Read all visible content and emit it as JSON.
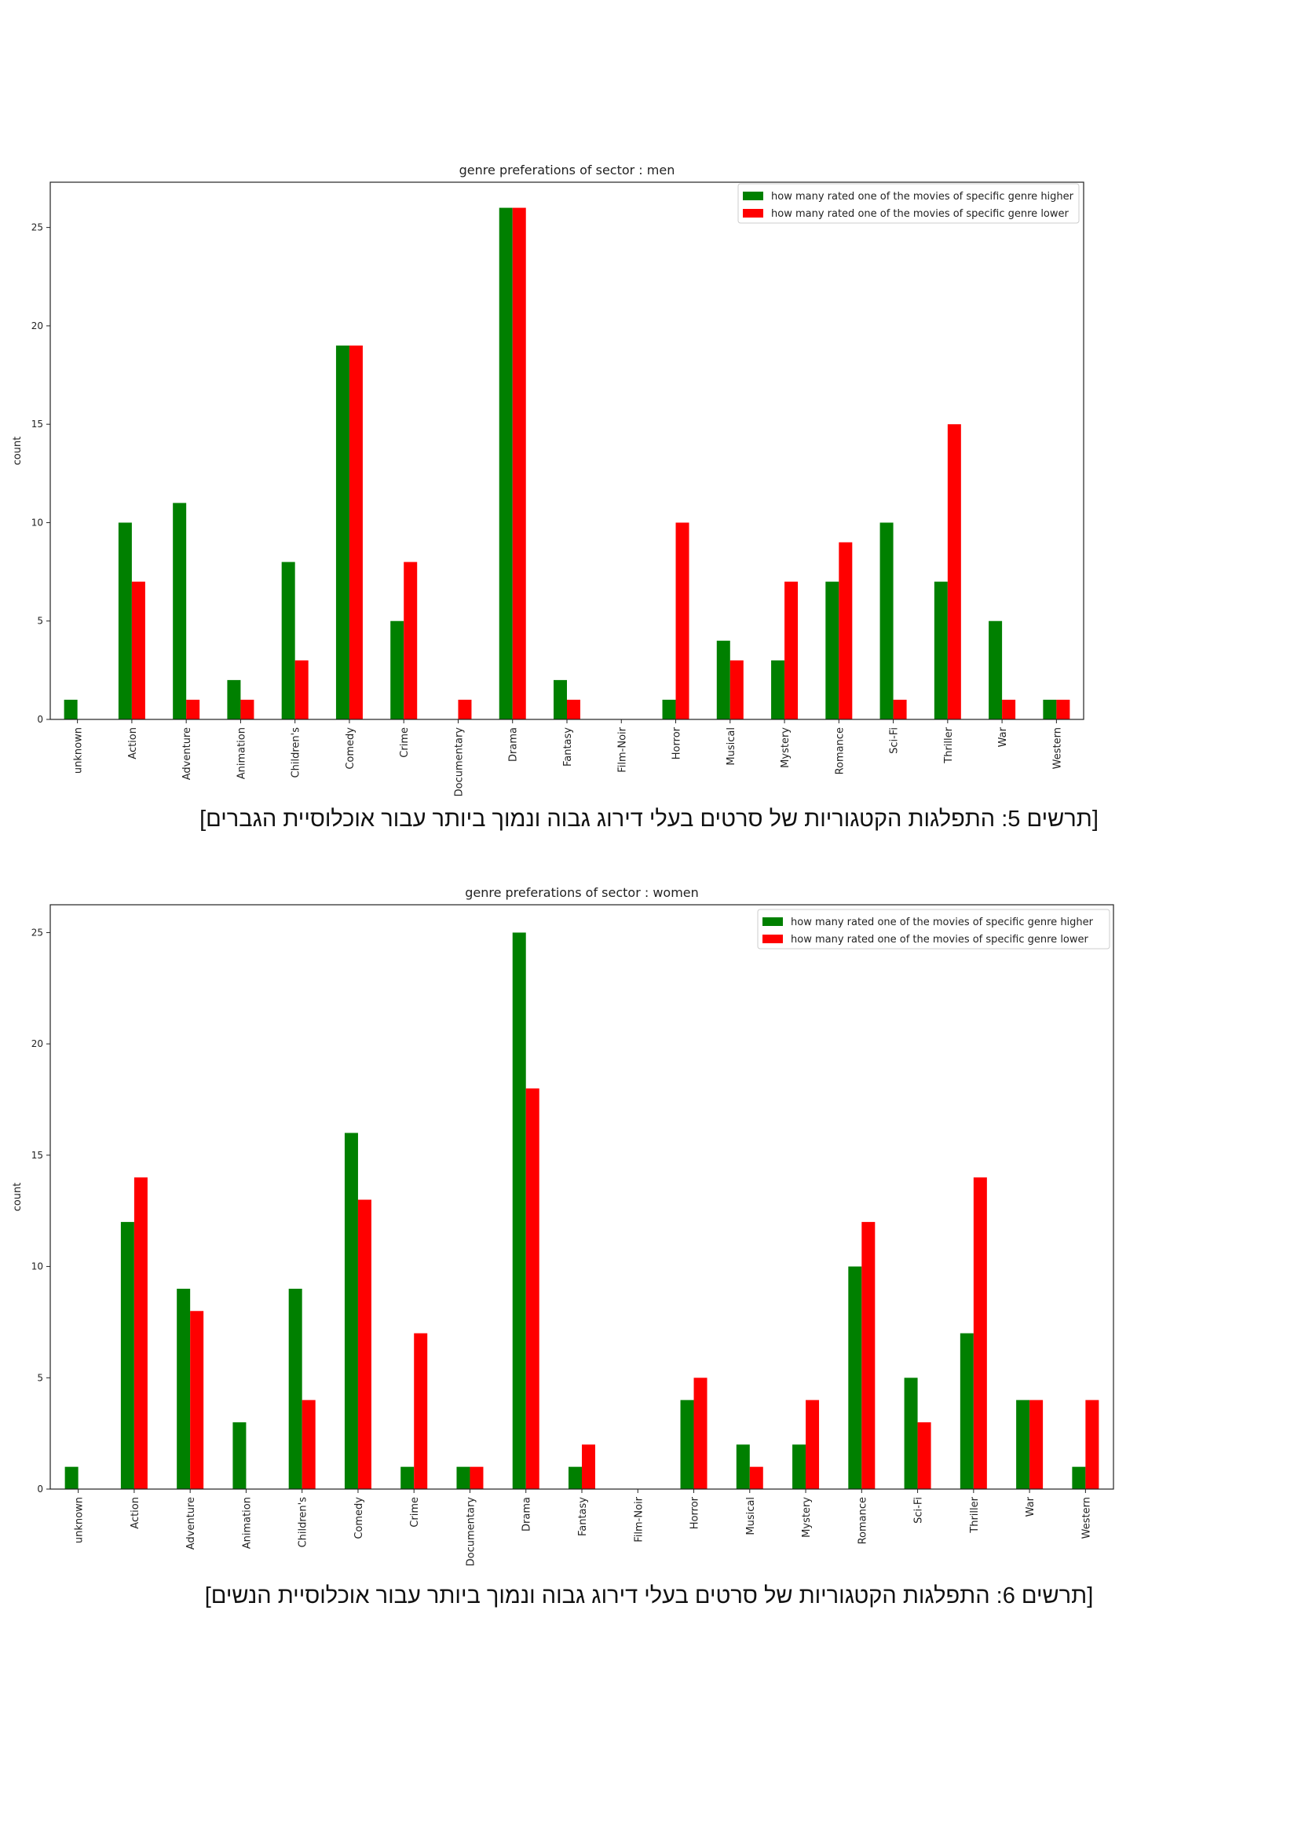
{
  "chart_data": [
    {
      "type": "bar",
      "title": "genre preferations of sector : men",
      "xlabel": "",
      "ylabel": "count",
      "ylim": [
        0,
        26
      ],
      "yticks": [
        0,
        5,
        10,
        15,
        20,
        25
      ],
      "grid": false,
      "legend_position": "top-right",
      "categories": [
        "unknown",
        "Action",
        "Adventure",
        "Animation",
        "Children's",
        "Comedy",
        "Crime",
        "Documentary",
        "Drama",
        "Fantasy",
        "Film-Noir",
        "Horror",
        "Musical",
        "Mystery",
        "Romance",
        "Sci-Fi",
        "Thriller",
        "War",
        "Western"
      ],
      "series": [
        {
          "name": "how many rated one of the movies of specific genre higher",
          "color": "#008000",
          "values": [
            1,
            10,
            11,
            2,
            8,
            19,
            5,
            0,
            26,
            2,
            0,
            1,
            4,
            3,
            7,
            10,
            7,
            5,
            1
          ]
        },
        {
          "name": "how many rated one of the movies of specific genre lower",
          "color": "#ff0000",
          "values": [
            0,
            7,
            1,
            1,
            3,
            19,
            8,
            1,
            26,
            1,
            0,
            10,
            3,
            7,
            9,
            1,
            15,
            1,
            1
          ]
        }
      ]
    },
    {
      "type": "bar",
      "title": "genre preferations of sector : women",
      "xlabel": "",
      "ylabel": "count",
      "ylim": [
        0,
        25
      ],
      "yticks": [
        0,
        5,
        10,
        15,
        20,
        25
      ],
      "grid": false,
      "legend_position": "top-right",
      "categories": [
        "unknown",
        "Action",
        "Adventure",
        "Animation",
        "Children's",
        "Comedy",
        "Crime",
        "Documentary",
        "Drama",
        "Fantasy",
        "Film-Noir",
        "Horror",
        "Musical",
        "Mystery",
        "Romance",
        "Sci-Fi",
        "Thriller",
        "War",
        "Western"
      ],
      "series": [
        {
          "name": "how many rated one of the movies of specific genre higher",
          "color": "#008000",
          "values": [
            1,
            12,
            9,
            3,
            9,
            16,
            1,
            1,
            25,
            1,
            0,
            4,
            2,
            2,
            10,
            5,
            7,
            4,
            1
          ]
        },
        {
          "name": "how many rated one of the movies of specific genre lower",
          "color": "#ff0000",
          "values": [
            0,
            14,
            8,
            0,
            4,
            13,
            7,
            1,
            18,
            2,
            0,
            5,
            1,
            4,
            12,
            3,
            14,
            4,
            4
          ]
        }
      ]
    }
  ],
  "captions": {
    "men": "[תרשים 5: התפלגות הקטגוריות של סרטים בעלי דירוג גבוה ונמוך ביותר עבור אוכלוסיית הגברים]",
    "women": "[תרשים 6: התפלגות הקטגוריות של סרטים בעלי דירוג גבוה ונמוך ביותר עבור אוכלוסיית הנשים]"
  }
}
